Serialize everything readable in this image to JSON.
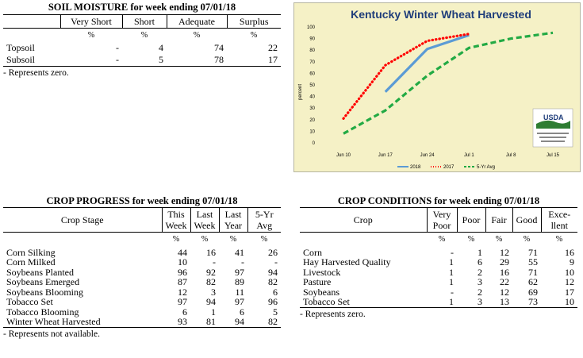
{
  "soil_moisture": {
    "title": "SOIL MOISTURE for week ending 07/01/18",
    "columns": [
      "Very Short",
      "Short",
      "Adequate",
      "Surplus"
    ],
    "unit_row": [
      "%",
      "%",
      "%",
      "%"
    ],
    "rows": [
      {
        "label": "Topsoil",
        "values": [
          "-",
          "4",
          "74",
          "22"
        ]
      },
      {
        "label": "Subsoil",
        "values": [
          "-",
          "5",
          "78",
          "17"
        ]
      }
    ],
    "note": "- Represents zero."
  },
  "crop_progress": {
    "title": "CROP PROGRESS for week ending 07/01/18",
    "stage_header": "Crop Stage",
    "columns": [
      [
        "This",
        "Week"
      ],
      [
        "Last",
        "Week"
      ],
      [
        "Last",
        "Year"
      ],
      [
        "5-Yr",
        "Avg"
      ]
    ],
    "unit_row": [
      "%",
      "%",
      "%",
      "%"
    ],
    "rows": [
      {
        "label": "Corn Silking",
        "values": [
          "44",
          "16",
          "41",
          "26"
        ]
      },
      {
        "label": "Corn Milked",
        "values": [
          "10",
          "-",
          "-",
          "-"
        ]
      },
      {
        "label": "Soybeans Planted",
        "values": [
          "96",
          "92",
          "97",
          "94"
        ]
      },
      {
        "label": "Soybeans Emerged",
        "values": [
          "87",
          "82",
          "89",
          "82"
        ]
      },
      {
        "label": "Soybeans Blooming",
        "values": [
          "12",
          "3",
          "11",
          "6"
        ]
      },
      {
        "label": "Tobacco Set",
        "values": [
          "97",
          "94",
          "97",
          "96"
        ]
      },
      {
        "label": "Tobacco Blooming",
        "values": [
          "6",
          "1",
          "6",
          "5"
        ]
      },
      {
        "label": "Winter Wheat Harvested",
        "values": [
          "93",
          "81",
          "94",
          "82"
        ]
      }
    ],
    "note": "- Represents not available."
  },
  "crop_conditions": {
    "title": "CROP CONDITIONS for week ending 07/01/18",
    "crop_header": "Crop",
    "columns": [
      [
        "Very",
        "Poor"
      ],
      [
        "Poor",
        ""
      ],
      [
        "Fair",
        ""
      ],
      [
        "Good",
        ""
      ],
      [
        "Exce-",
        "llent"
      ]
    ],
    "unit_row": [
      "%",
      "%",
      "%",
      "%",
      "%"
    ],
    "rows": [
      {
        "label": "Corn",
        "values": [
          "-",
          "1",
          "12",
          "71",
          "16"
        ]
      },
      {
        "label": "Hay Harvested Quality",
        "values": [
          "1",
          "6",
          "29",
          "55",
          "9"
        ]
      },
      {
        "label": "Livestock",
        "values": [
          "1",
          "2",
          "16",
          "71",
          "10"
        ]
      },
      {
        "label": "Pasture",
        "values": [
          "1",
          "3",
          "22",
          "62",
          "12"
        ]
      },
      {
        "label": "Soybeans",
        "values": [
          "-",
          "2",
          "12",
          "69",
          "17"
        ]
      },
      {
        "label": "Tobacco Set",
        "values": [
          "1",
          "3",
          "13",
          "73",
          "10"
        ]
      }
    ],
    "note": "- Represents zero."
  },
  "chart_data": {
    "type": "line",
    "title": "Kentucky Winter Wheat Harvested",
    "ylabel": "percent",
    "xlabel": "",
    "ylim": [
      0,
      100
    ],
    "y_ticks": [
      0,
      10,
      20,
      30,
      40,
      50,
      60,
      70,
      80,
      90,
      100
    ],
    "categories": [
      "Jun 10",
      "Jun 17",
      "Jun 24",
      "Jul 1",
      "Jul 8",
      "Jul 15"
    ],
    "series": [
      {
        "name": "2018",
        "color": "#5b9bd5",
        "style": "solid",
        "x": [
          "Jun 17",
          "Jun 24",
          "Jul 1"
        ],
        "values": [
          44,
          81,
          93
        ]
      },
      {
        "name": "2017",
        "color": "#ff0000",
        "style": "dotted",
        "x": [
          "Jun 10",
          "Jun 17",
          "Jun 24",
          "Jul 1"
        ],
        "values": [
          21,
          67,
          88,
          94
        ]
      },
      {
        "name": "5-Yr Avg",
        "color": "#22aa44",
        "style": "dashed",
        "x": [
          "Jun 10",
          "Jun 17",
          "Jun 24",
          "Jul 1",
          "Jul 8",
          "Jul 15"
        ],
        "values": [
          8,
          28,
          58,
          82,
          90,
          95
        ]
      }
    ],
    "legend_position": "bottom",
    "grid": false,
    "logo_text": "USDA"
  }
}
